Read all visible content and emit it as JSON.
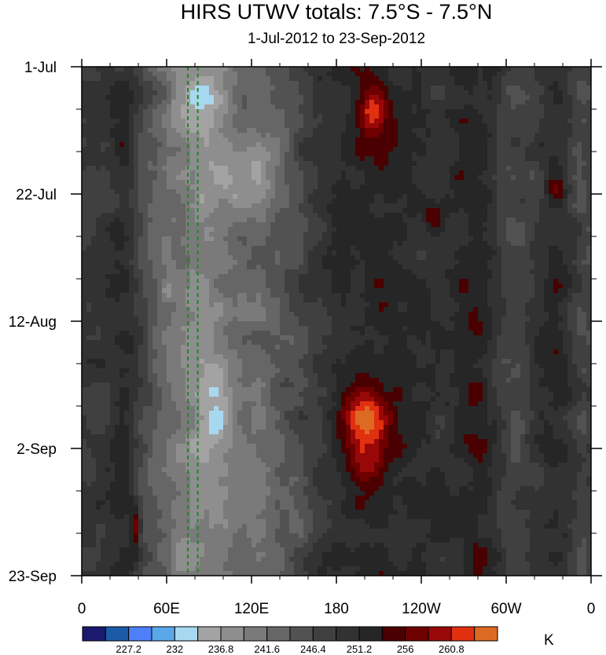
{
  "chart_data": {
    "type": "heatmap",
    "title": "HIRS UTWV totals: 7.5°S - 7.5°N",
    "subtitle": "1-Jul-2012 to 23-Sep-2012",
    "x_tick_labels": [
      "0",
      "60E",
      "120E",
      "180",
      "120W",
      "60W",
      "0"
    ],
    "x_ticks_lon": [
      0,
      60,
      120,
      180,
      240,
      300,
      360
    ],
    "x_range": [
      0,
      360
    ],
    "y_tick_labels": [
      "1-Jul",
      "22-Jul",
      "12-Aug",
      "2-Sep",
      "23-Sep"
    ],
    "y_ticks_day": [
      0,
      21,
      42,
      63,
      84
    ],
    "y_range": [
      0,
      84
    ],
    "colorbar": {
      "units": "K",
      "labels": [
        "227.2",
        "232",
        "236.8",
        "241.6",
        "246.4",
        "251.2",
        "256",
        "260.8"
      ],
      "label_boundary_index": [
        1,
        3,
        5,
        7,
        9,
        11,
        13,
        15
      ],
      "levels": [
        224.8,
        227.2,
        229.6,
        232,
        234.4,
        236.8,
        239.2,
        241.6,
        244,
        246.4,
        248.8,
        251.2,
        253.6,
        256,
        258.4,
        260.8,
        263.2
      ],
      "colors": [
        "#1a1a6e",
        "#1a5aa6",
        "#4f7ff7",
        "#5aa8e8",
        "#a8d8f0",
        "#a3a3a3",
        "#8e8e8e",
        "#7a7a7a",
        "#666666",
        "#525252",
        "#404040",
        "#323232",
        "#262626",
        "#4a0000",
        "#6e0000",
        "#990808",
        "#e03010",
        "#dd6a22"
      ]
    },
    "reference_lines_lon": [
      75,
      82
    ],
    "reference_line_color": "#1e8a1e",
    "features": [
      {
        "lon": 330,
        "day": 0,
        "lon_width": 80,
        "day_width": 84,
        "value": 250,
        "kind": "dry band"
      }
    ]
  }
}
